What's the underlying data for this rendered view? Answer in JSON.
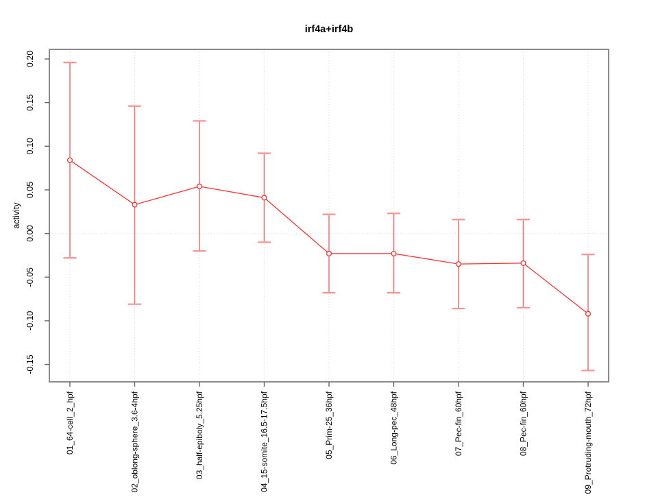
{
  "chart_data": {
    "type": "line",
    "title": "irf4a+irf4b",
    "ylabel": "activity",
    "xlabel": "",
    "categories": [
      "01_64-cell_2_hpf",
      "02_oblong-sphere_3.6-4hpf",
      "03_half-epiboly_5.25hpf",
      "04_15-somite_16.5-17.5hpf",
      "05_Prim-25_36hpf",
      "06_Long-pec_48hpf",
      "07_Pec-fin_60hpf",
      "08_Pec-fin_60hpf",
      "09_Protruding-mouth_72hpf"
    ],
    "series": [
      {
        "name": "irf4a+irf4b activity",
        "values": [
          0.084,
          0.033,
          0.054,
          0.041,
          -0.023,
          -0.023,
          -0.035,
          -0.034,
          -0.092
        ],
        "error_high": [
          0.196,
          0.146,
          0.129,
          0.092,
          0.022,
          0.023,
          0.016,
          0.016,
          -0.024
        ],
        "error_low": [
          -0.028,
          -0.081,
          -0.02,
          -0.01,
          -0.068,
          -0.068,
          -0.086,
          -0.085,
          -0.157
        ]
      }
    ],
    "ylim": [
      -0.17,
      0.211
    ],
    "yticks": [
      0.2,
      0.15,
      0.1,
      0.05,
      0.0,
      -0.05,
      -0.1,
      -0.15
    ],
    "ytick_labels": [
      "0.20",
      "0.15",
      "0.10",
      "0.05",
      "0.00",
      "-0.05",
      "-0.10",
      "-0.15"
    ],
    "grid": {
      "vertical_at_categories": true,
      "zero_line": true,
      "style": "dotted"
    },
    "legend": {
      "visible": false
    },
    "marker": "open-circle",
    "colors": {
      "series": "#ff2f2f",
      "error_bar": "#ff6a6a",
      "error_cap": "#ff9090",
      "grid": "#d6d6d6",
      "box": "#8a8a8a",
      "tick": "#666666",
      "text": "#000000",
      "background": "#ffffff"
    }
  }
}
